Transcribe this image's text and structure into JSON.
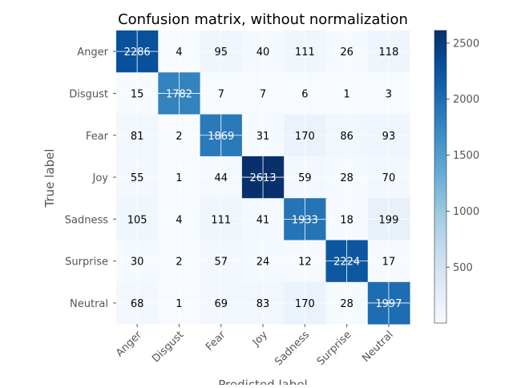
{
  "chart_data": {
    "type": "heatmap",
    "title": "Confusion matrix, without normalization",
    "xlabel": "Predicted label",
    "ylabel": "True label",
    "x_categories": [
      "Anger",
      "Disgust",
      "Fear",
      "Joy",
      "Sadness",
      "Surprise",
      "Neutral"
    ],
    "y_categories": [
      "Anger",
      "Disgust",
      "Fear",
      "Joy",
      "Sadness",
      "Surprise",
      "Neutral"
    ],
    "values": [
      [
        2286,
        4,
        95,
        40,
        111,
        26,
        118
      ],
      [
        15,
        1782,
        7,
        7,
        6,
        1,
        3
      ],
      [
        81,
        2,
        1869,
        31,
        170,
        86,
        93
      ],
      [
        55,
        1,
        44,
        2613,
        59,
        28,
        70
      ],
      [
        105,
        4,
        111,
        41,
        1933,
        18,
        199
      ],
      [
        30,
        2,
        57,
        24,
        12,
        2224,
        17
      ],
      [
        68,
        1,
        69,
        83,
        170,
        28,
        1997
      ]
    ],
    "colormap": "Blues",
    "vmin": 1,
    "vmax": 2613,
    "colorbar_ticks": [
      500,
      1000,
      1500,
      2000,
      2500
    ],
    "grid": true,
    "x_tick_rotation_deg": 45
  },
  "colors": {
    "text_dark": "#000000",
    "text_light": "#ffffff",
    "label_gray": "#555555",
    "grid": "#ffffff"
  }
}
